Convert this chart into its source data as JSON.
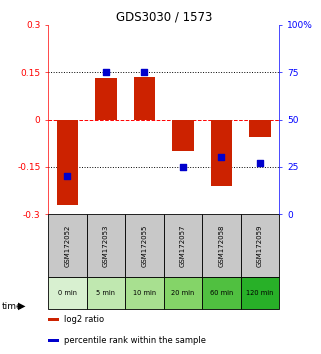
{
  "title": "GDS3030 / 1573",
  "samples": [
    "GSM172052",
    "GSM172053",
    "GSM172055",
    "GSM172057",
    "GSM172058",
    "GSM172059"
  ],
  "time_labels": [
    "0 min",
    "5 min",
    "10 min",
    "20 min",
    "60 min",
    "120 min"
  ],
  "log2_ratio": [
    -0.27,
    0.13,
    0.135,
    -0.1,
    -0.21,
    -0.055
  ],
  "percentile_rank": [
    20,
    75,
    75,
    25,
    30,
    27
  ],
  "bar_color": "#cc2200",
  "dot_color": "#0000cc",
  "ylim_left": [
    -0.3,
    0.3
  ],
  "ylim_right": [
    0,
    100
  ],
  "yticks_left": [
    -0.3,
    -0.15,
    0,
    0.15,
    0.3
  ],
  "yticks_right": [
    0,
    25,
    50,
    75,
    100
  ],
  "ytick_labels_left": [
    "-0.3",
    "-0.15",
    "0",
    "0.15",
    "0.3"
  ],
  "ytick_labels_right": [
    "0",
    "25",
    "50",
    "75",
    "100%"
  ],
  "hlines": [
    -0.15,
    0.0,
    0.15
  ],
  "hline_styles": [
    "dotted",
    "dashed",
    "dotted"
  ],
  "hline_colors": [
    "black",
    "red",
    "black"
  ],
  "time_bg_colors": [
    "#d8f0d0",
    "#c0e8b0",
    "#a8e090",
    "#84d468",
    "#50c040",
    "#28b028"
  ],
  "sample_bg_color": "#c8c8c8",
  "legend_items": [
    {
      "color": "#cc2200",
      "label": "log2 ratio"
    },
    {
      "color": "#0000cc",
      "label": "percentile rank within the sample"
    }
  ],
  "bar_width": 0.55,
  "dot_size": 22
}
